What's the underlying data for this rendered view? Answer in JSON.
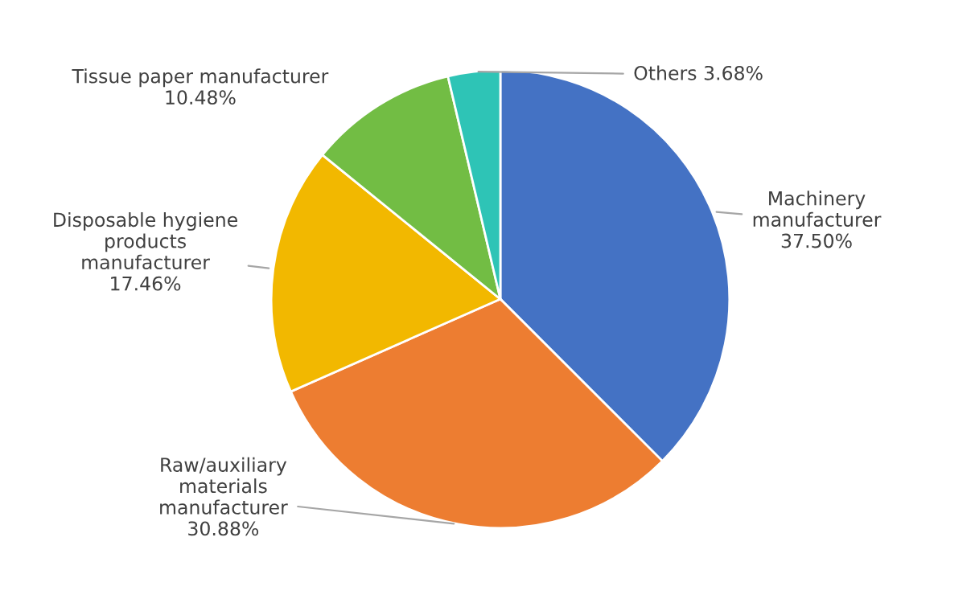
{
  "chart_data": {
    "type": "pie",
    "categories": [
      "Machinery\nmanufacturer",
      "Raw/auxiliary\nmaterials\nmanufacturer",
      "Disposable hygiene\nproducts\nmanufacturer",
      "Tissue paper manufacturer",
      "Others"
    ],
    "values": [
      37.5,
      30.88,
      17.46,
      10.48,
      3.68
    ],
    "value_labels": [
      "37.50%",
      "30.88%",
      "17.46%",
      "10.48%",
      "3.68%"
    ],
    "colors": [
      "#4472c4",
      "#ed7d31",
      "#f2b800",
      "#72bd44",
      "#2ec4b6"
    ]
  }
}
